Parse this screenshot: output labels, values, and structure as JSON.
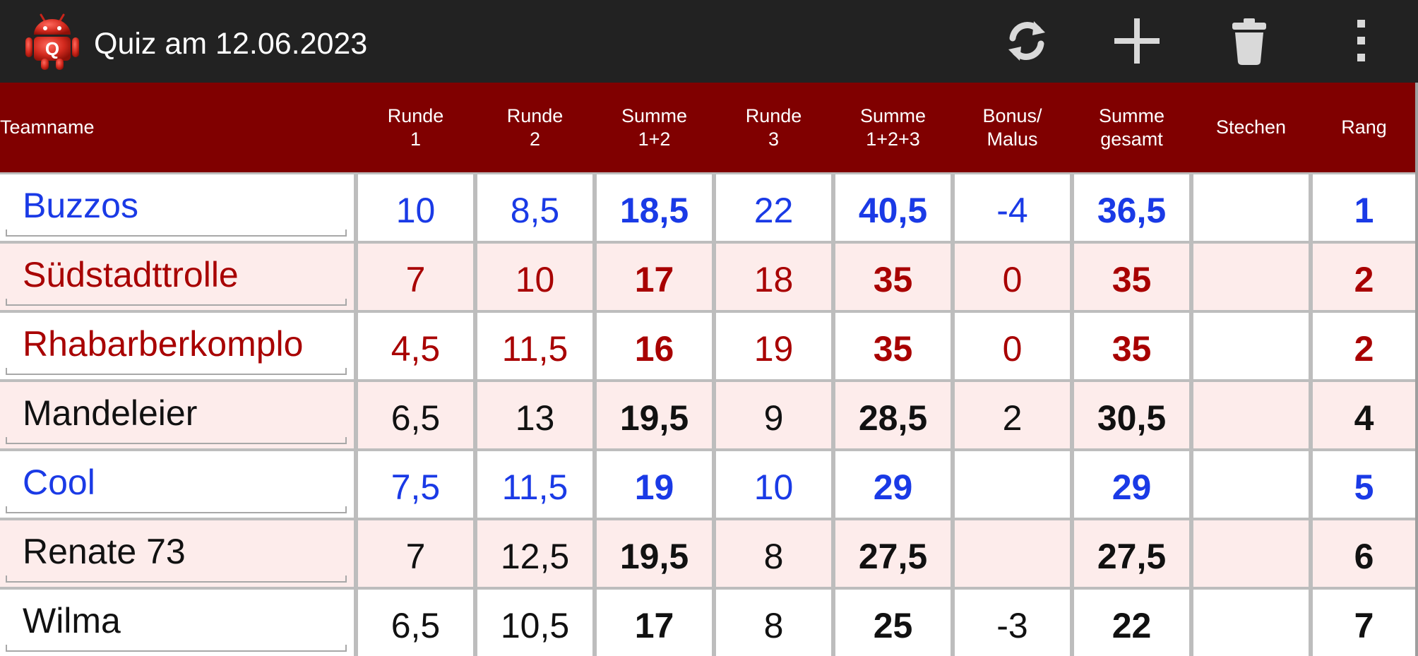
{
  "app": {
    "title": "Quiz am 12.06.2023",
    "icon_letter": "Q",
    "icon": "android-quiz-app-icon"
  },
  "toolbar": {
    "actions": [
      {
        "name": "refresh",
        "icon": "refresh-icon"
      },
      {
        "name": "add",
        "icon": "plus-icon"
      },
      {
        "name": "delete",
        "icon": "trash-icon"
      },
      {
        "name": "overflow",
        "icon": "more-vertical-icon"
      }
    ]
  },
  "colors": {
    "header_bg": "#800000",
    "actionbar_bg": "#222222",
    "row_white": "#ffffff",
    "row_pink": "#fdeceb",
    "blue": "#1a3ae6",
    "red": "#a80000",
    "black": "#111111"
  },
  "table": {
    "columns": [
      "Teamname",
      "Runde\n1",
      "Runde\n2",
      "Summe\n1+2",
      "Runde\n3",
      "Summe\n1+2+3",
      "Bonus/\nMalus",
      "Summe\ngesamt",
      "Stechen",
      "Rang"
    ],
    "rows": [
      {
        "team": "Buzzos",
        "color": "blue",
        "bg": "white",
        "cells": [
          "10",
          "8,5",
          "18,5",
          "22",
          "40,5",
          "-4",
          "36,5",
          "",
          "1"
        ]
      },
      {
        "team": "Südstadttrolle",
        "color": "red",
        "bg": "pink",
        "cells": [
          "7",
          "10",
          "17",
          "18",
          "35",
          "0",
          "35",
          "",
          "2"
        ]
      },
      {
        "team": "Rhabarberkomplo",
        "color": "red",
        "bg": "white",
        "cells": [
          "4,5",
          "11,5",
          "16",
          "19",
          "35",
          "0",
          "35",
          "",
          "2"
        ]
      },
      {
        "team": "Mandeleier",
        "color": "black",
        "bg": "pink",
        "cells": [
          "6,5",
          "13",
          "19,5",
          "9",
          "28,5",
          "2",
          "30,5",
          "",
          "4"
        ]
      },
      {
        "team": "Cool",
        "color": "blue",
        "bg": "white",
        "cells": [
          "7,5",
          "11,5",
          "19",
          "10",
          "29",
          "",
          "29",
          "",
          "5"
        ]
      },
      {
        "team": "Renate 73",
        "color": "black",
        "bg": "pink",
        "cells": [
          "7",
          "12,5",
          "19,5",
          "8",
          "27,5",
          "",
          "27,5",
          "",
          "6"
        ]
      },
      {
        "team": "Wilma",
        "color": "black",
        "bg": "white",
        "cells": [
          "6,5",
          "10,5",
          "17",
          "8",
          "25",
          "-3",
          "22",
          "",
          "7"
        ]
      }
    ]
  }
}
